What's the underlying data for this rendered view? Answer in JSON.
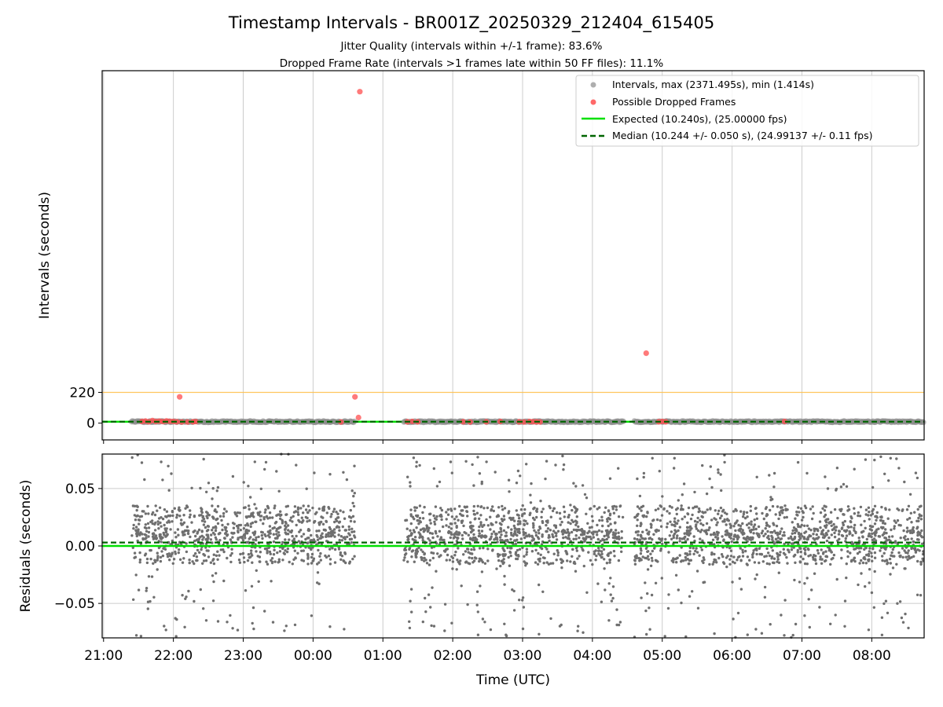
{
  "title": "Timestamp Intervals - BR001Z_20250329_212404_615405",
  "subtitle_lines": [
    "Jitter Quality (intervals within +/-1 frame): 83.6%",
    "Dropped Frame Rate (intervals >1 frames late within 50 FF files): 11.1%"
  ],
  "colors": {
    "interval_points": "#8c8c8c",
    "dropped_points": "#ff4d4d",
    "expected_line": "#00e000",
    "median_line": "#006400",
    "threshold_line": "#ffc04d",
    "residual_points": "#6f6f6f",
    "grid": "#cccccc"
  },
  "chart_data": [
    {
      "type": "scatter",
      "panel": "top",
      "xlabel": "",
      "ylabel": "Intervals (seconds)",
      "x_unit": "hours since 21:00 UTC (tick labels show clock time)",
      "xlim": [
        -0.02,
        11.75
      ],
      "ylim": [
        -120,
        2520
      ],
      "yticks": [
        0,
        220
      ],
      "xtick_labels": [
        "21:00",
        "22:00",
        "23:00",
        "00:00",
        "01:00",
        "02:00",
        "03:00",
        "04:00",
        "05:00",
        "06:00",
        "07:00",
        "08:00"
      ],
      "threshold_value": 220,
      "expected_value": 10.24,
      "median_value": 10.244,
      "legend_position": "top-right",
      "legend": [
        "Intervals, max (2371.495s), min (1.414s)",
        "Possible Dropped Frames",
        "Expected (10.240s), (25.00000 fps)",
        "Median (10.244 +/- 0.050 s), (24.99137 +/- 0.11 fps)"
      ],
      "interval_segments": [
        {
          "start": 0.4,
          "end": 3.6
        },
        {
          "start": 4.3,
          "end": 7.45
        },
        {
          "start": 7.6,
          "end": 11.75
        }
      ],
      "dropped_frames": [
        {
          "x": 0.55,
          "y": 12
        },
        {
          "x": 0.6,
          "y": 15
        },
        {
          "x": 0.65,
          "y": 10
        },
        {
          "x": 0.7,
          "y": 18
        },
        {
          "x": 0.75,
          "y": 12
        },
        {
          "x": 0.8,
          "y": 14
        },
        {
          "x": 0.85,
          "y": 11
        },
        {
          "x": 0.9,
          "y": 16
        },
        {
          "x": 0.95,
          "y": 13
        },
        {
          "x": 1.0,
          "y": 12
        },
        {
          "x": 1.05,
          "y": 10
        },
        {
          "x": 1.12,
          "y": 8
        },
        {
          "x": 1.2,
          "y": 8
        },
        {
          "x": 1.28,
          "y": 9
        },
        {
          "x": 1.32,
          "y": 11
        },
        {
          "x": 1.09,
          "y": 188
        },
        {
          "x": 3.4,
          "y": 8
        },
        {
          "x": 3.6,
          "y": 188
        },
        {
          "x": 3.65,
          "y": 40
        },
        {
          "x": 3.67,
          "y": 2370
        },
        {
          "x": 4.35,
          "y": 10
        },
        {
          "x": 4.42,
          "y": 12
        },
        {
          "x": 4.5,
          "y": 9
        },
        {
          "x": 5.15,
          "y": 10
        },
        {
          "x": 5.25,
          "y": 8
        },
        {
          "x": 5.48,
          "y": 10
        },
        {
          "x": 5.68,
          "y": 12
        },
        {
          "x": 5.95,
          "y": 10
        },
        {
          "x": 6.02,
          "y": 8
        },
        {
          "x": 6.1,
          "y": 12
        },
        {
          "x": 6.15,
          "y": 10
        },
        {
          "x": 6.2,
          "y": 9
        },
        {
          "x": 6.25,
          "y": 8
        },
        {
          "x": 7.77,
          "y": 500
        },
        {
          "x": 7.95,
          "y": 10
        },
        {
          "x": 8.0,
          "y": 12
        },
        {
          "x": 8.05,
          "y": 9
        },
        {
          "x": 9.75,
          "y": 12
        }
      ]
    },
    {
      "type": "scatter",
      "panel": "bottom",
      "xlabel": "Time (UTC)",
      "ylabel": "Residuals (seconds)",
      "x_unit": "hours since 21:00 UTC (tick labels show clock time)",
      "xlim": [
        -0.02,
        11.75
      ],
      "ylim": [
        -0.08,
        0.08
      ],
      "yticks": [
        -0.05,
        0.0,
        0.05
      ],
      "ytick_labels": [
        "−0.05",
        "0.00",
        "0.05"
      ],
      "xtick_labels": [
        "21:00",
        "22:00",
        "23:00",
        "00:00",
        "01:00",
        "02:00",
        "03:00",
        "04:00",
        "05:00",
        "06:00",
        "07:00",
        "08:00"
      ],
      "expected_value": 0.0,
      "median_value": 0.003,
      "data_segments": [
        {
          "start": 0.4,
          "end": 3.6
        },
        {
          "start": 4.3,
          "end": 7.45
        },
        {
          "start": 7.6,
          "end": 11.75
        }
      ]
    }
  ]
}
